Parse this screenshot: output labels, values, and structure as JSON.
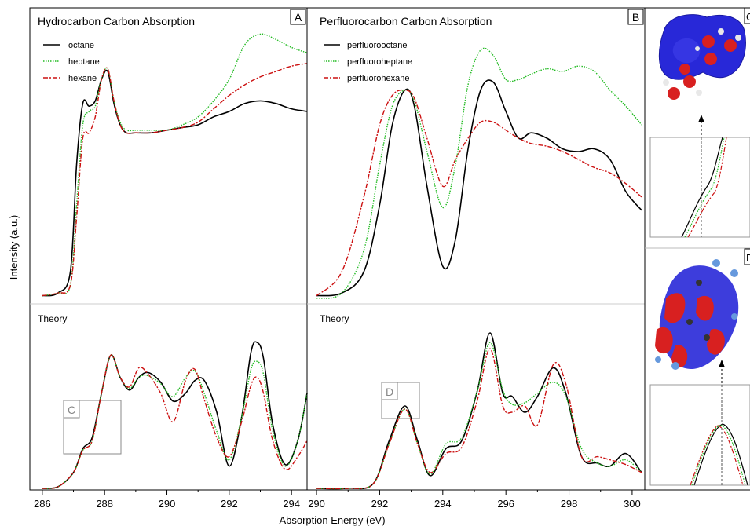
{
  "figure": {
    "ylabel": "Intensity (a.u.)",
    "xlabel": "Absorption Energy (eV)",
    "theory_label": "Theory",
    "colors": {
      "octane": "#000000",
      "heptane": "#22bb22",
      "hexane": "#cc1111",
      "frame": "#000000",
      "box": "#888888",
      "divider": "#cccccc"
    }
  },
  "panels": [
    {
      "letter": "A",
      "title": "Hydrocarbon Carbon Absorption",
      "legend": [
        "octane",
        "heptane",
        "hexane"
      ],
      "box_label": "C",
      "xticks": [
        "286",
        "288",
        "290",
        "292",
        "294"
      ]
    },
    {
      "letter": "B",
      "title": "Perfluorocarbon Carbon Absorption",
      "legend": [
        "perfluorooctane",
        "perfluoroheptane",
        "perfluorohexane"
      ],
      "box_label": "D",
      "xticks": [
        "290",
        "292",
        "294",
        "296",
        "298",
        "300"
      ]
    }
  ],
  "insets": {
    "top_letter": "C",
    "bottom_letter": "D"
  },
  "chart_data": [
    {
      "type": "line",
      "title": "Hydrocarbon Carbon Absorption",
      "subplot": "experiment",
      "xlim": [
        285.6,
        294.5
      ],
      "xticks": [
        286,
        288,
        290,
        292,
        294
      ],
      "ylabel": "Intensity (a.u.)",
      "xlabel": "Absorption Energy (eV)",
      "legend_position": "top-left",
      "series": [
        {
          "name": "octane",
          "style": "solid",
          "x": [
            286,
            286.5,
            286.9,
            287.1,
            287.3,
            287.5,
            287.7,
            287.9,
            288.1,
            288.3,
            288.5,
            288.7,
            289,
            289.5,
            290,
            290.5,
            291,
            291.5,
            292,
            292.5,
            293,
            293.5,
            294,
            294.5
          ],
          "y": [
            0.01,
            0.02,
            0.1,
            0.5,
            0.73,
            0.72,
            0.74,
            0.82,
            0.85,
            0.73,
            0.65,
            0.62,
            0.62,
            0.62,
            0.63,
            0.64,
            0.65,
            0.68,
            0.7,
            0.73,
            0.74,
            0.73,
            0.71,
            0.7
          ]
        },
        {
          "name": "heptane",
          "style": "dotted",
          "x": [
            286,
            286.5,
            286.9,
            287.1,
            287.3,
            287.5,
            287.7,
            287.9,
            288.1,
            288.3,
            288.5,
            288.7,
            289,
            289.5,
            290,
            290.5,
            291,
            291.5,
            292,
            292.5,
            293,
            293.5,
            294,
            294.5
          ],
          "y": [
            0.01,
            0.02,
            0.05,
            0.35,
            0.65,
            0.7,
            0.72,
            0.82,
            0.86,
            0.74,
            0.66,
            0.63,
            0.63,
            0.63,
            0.63,
            0.65,
            0.68,
            0.74,
            0.82,
            0.95,
            0.99,
            0.97,
            0.94,
            0.92
          ]
        },
        {
          "name": "hexane",
          "style": "dashed",
          "x": [
            286,
            286.5,
            286.9,
            287.1,
            287.3,
            287.5,
            287.7,
            287.9,
            288.1,
            288.3,
            288.5,
            288.7,
            289,
            289.5,
            290,
            290.5,
            291,
            291.5,
            292,
            292.5,
            293,
            293.5,
            294,
            294.5
          ],
          "y": [
            0.01,
            0.02,
            0.05,
            0.3,
            0.6,
            0.62,
            0.68,
            0.82,
            0.86,
            0.74,
            0.65,
            0.62,
            0.62,
            0.62,
            0.63,
            0.64,
            0.66,
            0.71,
            0.76,
            0.8,
            0.83,
            0.85,
            0.87,
            0.88
          ]
        }
      ]
    },
    {
      "type": "line",
      "title": "Theory",
      "subplot": "theory",
      "xlim": [
        285.6,
        294.5
      ],
      "xticks": [
        286,
        288,
        290,
        292,
        294
      ],
      "series": [
        {
          "name": "octane",
          "style": "solid",
          "x": [
            286,
            286.5,
            287,
            287.3,
            287.6,
            287.9,
            288.2,
            288.5,
            288.8,
            289.1,
            289.4,
            289.8,
            290.2,
            290.6,
            290.9,
            291.2,
            291.6,
            292,
            292.4,
            292.7,
            292.9,
            293.1,
            293.4,
            293.8,
            294.2,
            294.5
          ],
          "y": [
            0.0,
            0.01,
            0.1,
            0.25,
            0.32,
            0.6,
            0.84,
            0.7,
            0.62,
            0.7,
            0.73,
            0.67,
            0.55,
            0.6,
            0.68,
            0.68,
            0.48,
            0.14,
            0.45,
            0.86,
            0.92,
            0.82,
            0.4,
            0.15,
            0.3,
            0.6
          ]
        },
        {
          "name": "heptane",
          "style": "dotted",
          "x": [
            286,
            286.5,
            287,
            287.3,
            287.6,
            287.9,
            288.2,
            288.5,
            288.8,
            289.1,
            289.4,
            289.8,
            290.2,
            290.6,
            290.9,
            291.2,
            291.6,
            292,
            292.4,
            292.7,
            292.9,
            293.1,
            293.4,
            293.8,
            294.2,
            294.5
          ],
          "y": [
            0.0,
            0.01,
            0.1,
            0.24,
            0.3,
            0.6,
            0.84,
            0.7,
            0.63,
            0.7,
            0.71,
            0.66,
            0.58,
            0.7,
            0.74,
            0.6,
            0.36,
            0.18,
            0.45,
            0.75,
            0.8,
            0.72,
            0.36,
            0.14,
            0.3,
            0.6
          ]
        },
        {
          "name": "hexane",
          "style": "dashed",
          "x": [
            286,
            286.5,
            287,
            287.3,
            287.6,
            287.9,
            288.2,
            288.5,
            288.8,
            289.1,
            289.4,
            289.8,
            290.2,
            290.6,
            290.9,
            291.2,
            291.6,
            292,
            292.4,
            292.7,
            292.9,
            293.1,
            293.4,
            293.8,
            294.2,
            294.5
          ],
          "y": [
            0.0,
            0.01,
            0.1,
            0.24,
            0.3,
            0.6,
            0.84,
            0.7,
            0.64,
            0.76,
            0.72,
            0.6,
            0.42,
            0.68,
            0.75,
            0.56,
            0.32,
            0.2,
            0.42,
            0.65,
            0.7,
            0.6,
            0.3,
            0.12,
            0.2,
            0.3
          ]
        }
      ]
    },
    {
      "type": "line",
      "title": "Perfluorocarbon Carbon Absorption",
      "subplot": "experiment",
      "xlim": [
        289.7,
        300.4
      ],
      "xticks": [
        290,
        292,
        294,
        296,
        298,
        300
      ],
      "legend_position": "top-left",
      "series": [
        {
          "name": "perfluorooctane",
          "style": "solid",
          "x": [
            290,
            290.8,
            291.5,
            292,
            292.4,
            292.8,
            293.1,
            293.5,
            294,
            294.4,
            294.8,
            295.2,
            295.6,
            296,
            296.4,
            296.8,
            297.3,
            297.8,
            298.3,
            298.8,
            299.3,
            299.8,
            300.3
          ],
          "y": [
            0.01,
            0.02,
            0.1,
            0.35,
            0.65,
            0.78,
            0.72,
            0.42,
            0.12,
            0.22,
            0.56,
            0.78,
            0.81,
            0.7,
            0.6,
            0.62,
            0.6,
            0.56,
            0.55,
            0.56,
            0.52,
            0.4,
            0.33
          ]
        },
        {
          "name": "perfluoroheptane",
          "style": "dotted",
          "x": [
            290,
            290.8,
            291.5,
            292,
            292.4,
            292.8,
            293.1,
            293.5,
            294,
            294.4,
            294.8,
            295.2,
            295.6,
            296,
            296.4,
            296.8,
            297.3,
            297.8,
            298.3,
            298.8,
            299.3,
            299.8,
            300.3
          ],
          "y": [
            0.0,
            0.02,
            0.18,
            0.5,
            0.72,
            0.78,
            0.74,
            0.55,
            0.34,
            0.5,
            0.8,
            0.93,
            0.91,
            0.82,
            0.82,
            0.84,
            0.86,
            0.85,
            0.87,
            0.85,
            0.78,
            0.72,
            0.65
          ]
        },
        {
          "name": "perfluorohexane",
          "style": "dashed",
          "x": [
            290,
            290.8,
            291.5,
            292,
            292.4,
            292.8,
            293.1,
            293.5,
            294,
            294.4,
            294.8,
            295.2,
            295.6,
            296,
            296.4,
            296.8,
            297.3,
            297.8,
            298.3,
            298.8,
            299.3,
            299.8,
            300.3
          ],
          "y": [
            0.01,
            0.1,
            0.38,
            0.65,
            0.76,
            0.78,
            0.75,
            0.6,
            0.42,
            0.52,
            0.6,
            0.66,
            0.66,
            0.63,
            0.6,
            0.58,
            0.57,
            0.55,
            0.52,
            0.49,
            0.47,
            0.43,
            0.38
          ]
        }
      ]
    },
    {
      "type": "line",
      "title": "Theory",
      "subplot": "theory",
      "xlim": [
        289.7,
        300.4
      ],
      "xticks": [
        290,
        292,
        294,
        296,
        298,
        300
      ],
      "series": [
        {
          "name": "perfluorooctane",
          "style": "solid",
          "x": [
            290,
            291,
            291.8,
            292.3,
            292.8,
            293.2,
            293.6,
            294.1,
            294.6,
            295.1,
            295.5,
            295.9,
            296.2,
            296.6,
            297,
            297.5,
            297.9,
            298.4,
            298.9,
            299.3,
            299.8,
            300.3
          ],
          "y": [
            0.0,
            0.0,
            0.03,
            0.3,
            0.52,
            0.3,
            0.08,
            0.25,
            0.3,
            0.62,
            0.98,
            0.6,
            0.58,
            0.48,
            0.58,
            0.76,
            0.6,
            0.2,
            0.16,
            0.14,
            0.22,
            0.1
          ]
        },
        {
          "name": "perfluoroheptane",
          "style": "dotted",
          "x": [
            290,
            291,
            291.8,
            292.3,
            292.8,
            293.2,
            293.6,
            294.1,
            294.6,
            295.1,
            295.5,
            295.9,
            296.2,
            296.6,
            297,
            297.5,
            297.9,
            298.4,
            298.9,
            299.3,
            299.8,
            300.3
          ],
          "y": [
            0.0,
            0.0,
            0.03,
            0.28,
            0.5,
            0.28,
            0.09,
            0.28,
            0.32,
            0.62,
            0.92,
            0.62,
            0.53,
            0.54,
            0.6,
            0.67,
            0.58,
            0.25,
            0.16,
            0.14,
            0.18,
            0.1
          ]
        },
        {
          "name": "perfluorohexane",
          "style": "dashed",
          "x": [
            290,
            291,
            291.8,
            292.3,
            292.8,
            293.2,
            293.6,
            294.1,
            294.6,
            295.1,
            295.5,
            295.9,
            296.2,
            296.6,
            297,
            297.5,
            297.9,
            298.4,
            298.9,
            299.3,
            299.8,
            300.3
          ],
          "y": [
            0.0,
            0.0,
            0.03,
            0.28,
            0.5,
            0.28,
            0.1,
            0.22,
            0.26,
            0.56,
            0.88,
            0.52,
            0.48,
            0.52,
            0.4,
            0.78,
            0.66,
            0.2,
            0.2,
            0.18,
            0.15,
            0.1
          ]
        }
      ]
    }
  ]
}
